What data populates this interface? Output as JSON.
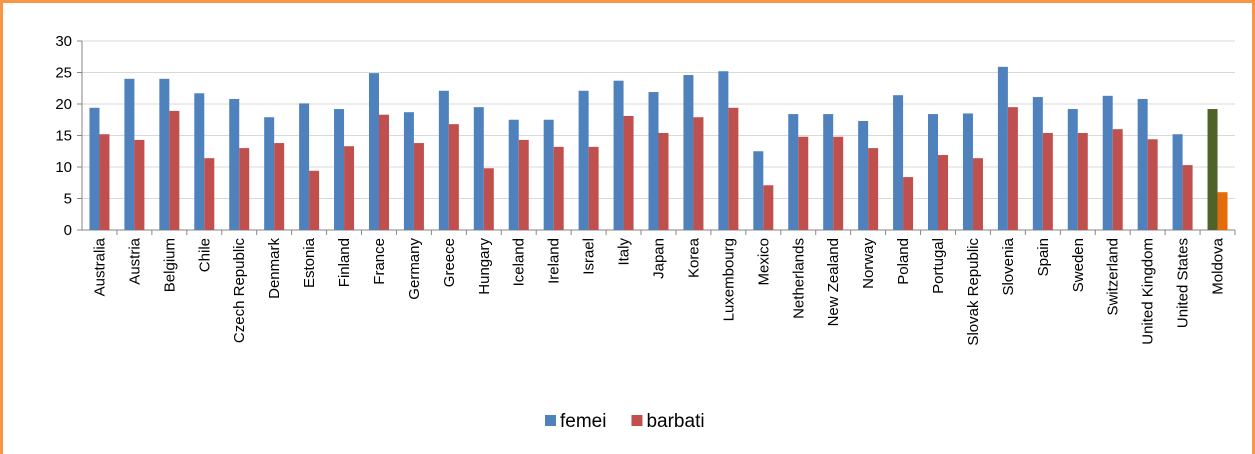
{
  "chart_data": {
    "type": "bar",
    "categories": [
      "Australia",
      "Austria",
      "Belgium",
      "Chile",
      "Czech Republic",
      "Denmark",
      "Estonia",
      "Finland",
      "France",
      "Germany",
      "Greece",
      "Hungary",
      "Iceland",
      "Ireland",
      "Israel",
      "Italy",
      "Japan",
      "Korea",
      "Luxembourg",
      "Mexico",
      "Netherlands",
      "New Zealand",
      "Norway",
      "Poland",
      "Portugal",
      "Slovak Republic",
      "Slovenia",
      "Spain",
      "Sweden",
      "Switzerland",
      "United Kingdom",
      "United States",
      "Moldova"
    ],
    "series": [
      {
        "name": "femei",
        "color": "#4f81bd",
        "category_colors": {
          "Moldova": "#4f6228"
        },
        "values": [
          19.4,
          24,
          24,
          21.7,
          20.8,
          17.9,
          20.1,
          19.2,
          24.9,
          18.7,
          22.1,
          19.5,
          17.5,
          17.5,
          22.1,
          23.7,
          21.9,
          24.6,
          25.2,
          12.5,
          18.4,
          18.4,
          17.3,
          21.4,
          18.4,
          18.5,
          25.9,
          21.1,
          19.2,
          21.3,
          20.8,
          15.2,
          19.2
        ]
      },
      {
        "name": "barbati",
        "color": "#c0504d",
        "category_colors": {
          "Moldova": "#e46c0a"
        },
        "values": [
          15.2,
          14.3,
          18.9,
          11.4,
          13,
          13.8,
          9.4,
          13.3,
          18.3,
          13.8,
          16.8,
          9.8,
          14.3,
          13.2,
          13.2,
          18.1,
          15.4,
          17.9,
          19.4,
          7.1,
          14.8,
          14.8,
          13,
          8.4,
          11.9,
          11.4,
          19.5,
          15.4,
          15.4,
          16,
          14.4,
          10.3,
          6
        ]
      }
    ],
    "ylim": [
      0,
      30
    ],
    "yticks": [
      0,
      5,
      10,
      15,
      20,
      25,
      30
    ],
    "grid": true,
    "legend": "bottom"
  }
}
